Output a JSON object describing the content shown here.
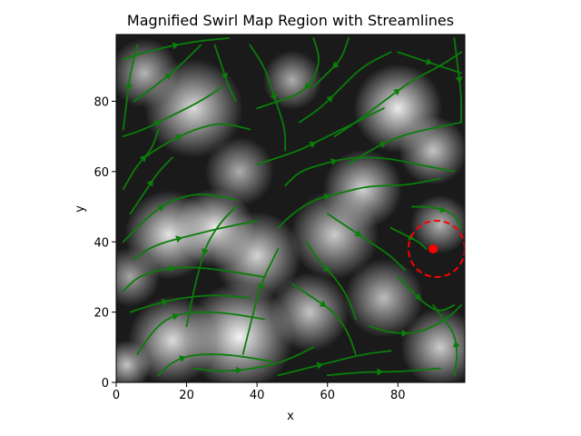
{
  "chart_data": {
    "type": "streamplot",
    "title": "Magnified Swirl Map Region with Streamlines",
    "xlabel": "x",
    "ylabel": "y",
    "xlim": [
      0,
      99
    ],
    "ylim": [
      0,
      99
    ],
    "x_ticks": [
      0,
      20,
      40,
      60,
      80
    ],
    "y_ticks": [
      0,
      20,
      40,
      60,
      80
    ],
    "x_tick_labels": [
      "0",
      "20",
      "40",
      "60",
      "80"
    ],
    "y_tick_labels": [
      "0",
      "20",
      "40",
      "60",
      "80"
    ],
    "background": "grayscale swirl map image",
    "streamline_color": "#0a7d0a",
    "marker": {
      "x": 90,
      "y": 38,
      "color": "#ff0000"
    },
    "highlight_circle": {
      "center_x": 91,
      "center_y": 38,
      "radius": 8,
      "color": "#ff0000",
      "style": "dashed"
    },
    "bright_blobs": [
      {
        "x": 35,
        "y": 13,
        "r": 11,
        "v": 1.0
      },
      {
        "x": 16,
        "y": 12,
        "r": 9,
        "v": 0.85
      },
      {
        "x": 15,
        "y": 42,
        "r": 9,
        "v": 0.9
      },
      {
        "x": 28,
        "y": 44,
        "r": 8,
        "v": 0.95
      },
      {
        "x": 40,
        "y": 36,
        "r": 9,
        "v": 0.8
      },
      {
        "x": 22,
        "y": 78,
        "r": 10,
        "v": 0.85
      },
      {
        "x": 8,
        "y": 88,
        "r": 7,
        "v": 0.6
      },
      {
        "x": 50,
        "y": 86,
        "r": 6,
        "v": 0.55
      },
      {
        "x": 80,
        "y": 78,
        "r": 9,
        "v": 0.95
      },
      {
        "x": 70,
        "y": 55,
        "r": 8,
        "v": 0.8
      },
      {
        "x": 90,
        "y": 66,
        "r": 7,
        "v": 0.7
      },
      {
        "x": 62,
        "y": 42,
        "r": 9,
        "v": 0.75
      },
      {
        "x": 76,
        "y": 24,
        "r": 8,
        "v": 0.65
      },
      {
        "x": 55,
        "y": 20,
        "r": 8,
        "v": 0.7
      },
      {
        "x": 92,
        "y": 10,
        "r": 8,
        "v": 0.75
      },
      {
        "x": 4,
        "y": 30,
        "r": 6,
        "v": 0.5
      },
      {
        "x": 35,
        "y": 60,
        "r": 7,
        "v": 0.55
      },
      {
        "x": 92,
        "y": 45,
        "r": 6,
        "v": 0.6
      },
      {
        "x": 3,
        "y": 5,
        "r": 5,
        "v": 0.7
      }
    ],
    "streamlines": [
      [
        [
          2,
          92
        ],
        [
          12,
          95
        ],
        [
          22,
          97
        ],
        [
          32,
          98
        ]
      ],
      [
        [
          5,
          80
        ],
        [
          12,
          85
        ],
        [
          18,
          90
        ],
        [
          24,
          96
        ]
      ],
      [
        [
          2,
          70
        ],
        [
          8,
          72
        ],
        [
          16,
          76
        ],
        [
          24,
          80
        ],
        [
          30,
          84
        ]
      ],
      [
        [
          8,
          64
        ],
        [
          14,
          68
        ],
        [
          22,
          72
        ],
        [
          30,
          74
        ],
        [
          38,
          72
        ]
      ],
      [
        [
          2,
          55
        ],
        [
          6,
          62
        ],
        [
          10,
          66
        ],
        [
          12,
          72
        ]
      ],
      [
        [
          4,
          48
        ],
        [
          8,
          54
        ],
        [
          12,
          60
        ],
        [
          16,
          64
        ]
      ],
      [
        [
          2,
          40
        ],
        [
          6,
          44
        ],
        [
          10,
          48
        ],
        [
          16,
          52
        ],
        [
          24,
          54
        ],
        [
          34,
          52
        ]
      ],
      [
        [
          5,
          35
        ],
        [
          9,
          38
        ],
        [
          14,
          40
        ],
        [
          22,
          42
        ],
        [
          30,
          44
        ],
        [
          40,
          46
        ]
      ],
      [
        [
          2,
          26
        ],
        [
          6,
          30
        ],
        [
          12,
          32
        ],
        [
          20,
          33
        ],
        [
          30,
          32
        ],
        [
          42,
          30
        ]
      ],
      [
        [
          4,
          20
        ],
        [
          10,
          22
        ],
        [
          18,
          24
        ],
        [
          28,
          25
        ],
        [
          38,
          24
        ]
      ],
      [
        [
          6,
          8
        ],
        [
          10,
          14
        ],
        [
          14,
          18
        ],
        [
          20,
          20
        ],
        [
          30,
          20
        ],
        [
          42,
          18
        ]
      ],
      [
        [
          12,
          2
        ],
        [
          16,
          6
        ],
        [
          22,
          8
        ],
        [
          32,
          8
        ],
        [
          44,
          6
        ]
      ],
      [
        [
          22,
          4
        ],
        [
          30,
          3
        ],
        [
          40,
          4
        ],
        [
          48,
          6
        ],
        [
          56,
          10
        ]
      ],
      [
        [
          46,
          2
        ],
        [
          54,
          4
        ],
        [
          62,
          6
        ],
        [
          70,
          8
        ],
        [
          78,
          9
        ]
      ],
      [
        [
          60,
          2
        ],
        [
          70,
          3
        ],
        [
          80,
          3
        ],
        [
          92,
          4
        ]
      ],
      [
        [
          96,
          2
        ],
        [
          97,
          8
        ],
        [
          96,
          14
        ],
        [
          93,
          18
        ],
        [
          90,
          22
        ]
      ],
      [
        [
          72,
          16
        ],
        [
          78,
          14
        ],
        [
          86,
          14
        ],
        [
          94,
          18
        ],
        [
          98,
          22
        ]
      ],
      [
        [
          50,
          28
        ],
        [
          56,
          24
        ],
        [
          62,
          20
        ],
        [
          66,
          14
        ],
        [
          68,
          8
        ]
      ],
      [
        [
          54,
          40
        ],
        [
          58,
          34
        ],
        [
          62,
          30
        ],
        [
          66,
          24
        ],
        [
          68,
          18
        ]
      ],
      [
        [
          60,
          48
        ],
        [
          66,
          44
        ],
        [
          72,
          40
        ],
        [
          78,
          36
        ],
        [
          82,
          32
        ]
      ],
      [
        [
          46,
          44
        ],
        [
          50,
          48
        ],
        [
          56,
          52
        ],
        [
          64,
          54
        ],
        [
          72,
          56
        ],
        [
          82,
          56
        ],
        [
          92,
          58
        ]
      ],
      [
        [
          48,
          56
        ],
        [
          52,
          60
        ],
        [
          58,
          62
        ],
        [
          66,
          64
        ],
        [
          76,
          64
        ],
        [
          86,
          62
        ],
        [
          96,
          60
        ]
      ],
      [
        [
          40,
          62
        ],
        [
          46,
          64
        ],
        [
          52,
          66
        ],
        [
          60,
          70
        ],
        [
          68,
          74
        ],
        [
          76,
          78
        ]
      ],
      [
        [
          52,
          74
        ],
        [
          58,
          78
        ],
        [
          64,
          84
        ],
        [
          70,
          90
        ],
        [
          78,
          94
        ]
      ],
      [
        [
          62,
          70
        ],
        [
          68,
          74
        ],
        [
          76,
          80
        ],
        [
          84,
          86
        ],
        [
          92,
          90
        ],
        [
          98,
          94
        ]
      ],
      [
        [
          66,
          62
        ],
        [
          72,
          66
        ],
        [
          80,
          70
        ],
        [
          88,
          72
        ],
        [
          98,
          74
        ]
      ],
      [
        [
          80,
          94
        ],
        [
          86,
          92
        ],
        [
          92,
          90
        ],
        [
          98,
          88
        ]
      ],
      [
        [
          38,
          96
        ],
        [
          42,
          90
        ],
        [
          44,
          84
        ],
        [
          46,
          78
        ],
        [
          48,
          72
        ],
        [
          48,
          66
        ]
      ],
      [
        [
          28,
          96
        ],
        [
          30,
          90
        ],
        [
          32,
          84
        ],
        [
          34,
          80
        ]
      ],
      [
        [
          56,
          98
        ],
        [
          58,
          92
        ],
        [
          56,
          86
        ],
        [
          52,
          82
        ],
        [
          46,
          80
        ],
        [
          40,
          78
        ]
      ],
      [
        [
          66,
          98
        ],
        [
          64,
          92
        ],
        [
          60,
          88
        ],
        [
          56,
          84
        ]
      ],
      [
        [
          46,
          38
        ],
        [
          44,
          34
        ],
        [
          42,
          30
        ],
        [
          40,
          24
        ],
        [
          38,
          16
        ],
        [
          36,
          8
        ]
      ],
      [
        [
          34,
          50
        ],
        [
          30,
          46
        ],
        [
          26,
          40
        ],
        [
          24,
          34
        ],
        [
          22,
          26
        ],
        [
          20,
          16
        ]
      ],
      [
        [
          78,
          44
        ],
        [
          82,
          42
        ],
        [
          86,
          40
        ],
        [
          88,
          38
        ]
      ],
      [
        [
          80,
          30
        ],
        [
          84,
          26
        ],
        [
          88,
          22
        ],
        [
          92,
          20
        ],
        [
          96,
          22
        ]
      ],
      [
        [
          84,
          50
        ],
        [
          90,
          50
        ],
        [
          96,
          48
        ],
        [
          98,
          44
        ]
      ],
      [
        [
          6,
          96
        ],
        [
          4,
          88
        ],
        [
          3,
          80
        ],
        [
          2,
          72
        ]
      ],
      [
        [
          96,
          98
        ],
        [
          97,
          90
        ],
        [
          98,
          82
        ],
        [
          98,
          74
        ]
      ]
    ]
  }
}
